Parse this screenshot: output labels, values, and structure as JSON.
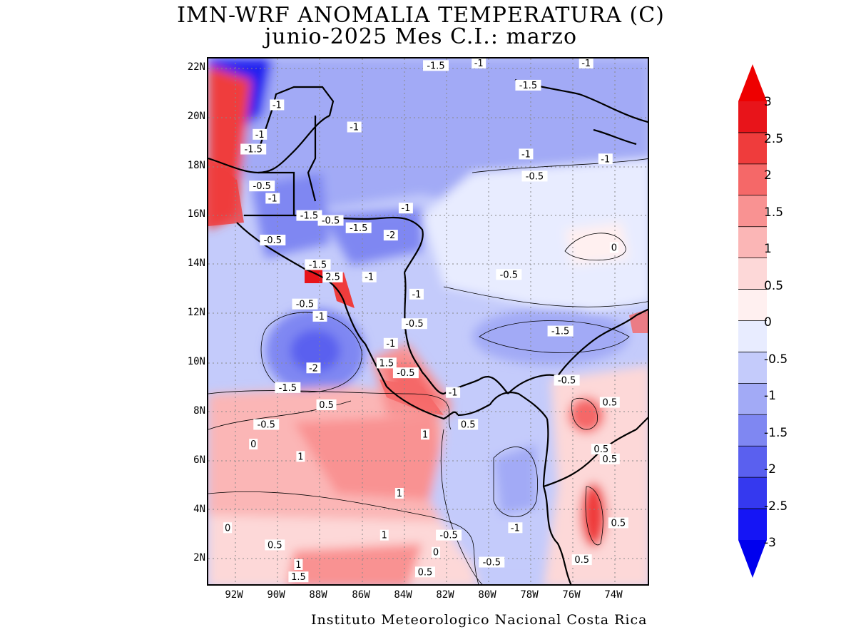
{
  "title": {
    "line1": "IMN-WRF  ANOMALIA TEMPERATURA (C)",
    "line2": "junio-2025 Mes C.I.: marzo"
  },
  "credit": "Instituto Meteorologico Nacional Costa Rica",
  "axes": {
    "lat_labels": [
      "22N",
      "20N",
      "18N",
      "16N",
      "14N",
      "12N",
      "10N",
      "8N",
      "6N",
      "4N",
      "2N"
    ],
    "lon_labels": [
      "92W",
      "90W",
      "88W",
      "86W",
      "84W",
      "82W",
      "80W",
      "78W",
      "76W",
      "74W"
    ]
  },
  "colorbar": {
    "labels": [
      "3",
      "2.5",
      "2",
      "1.5",
      "1",
      "0.5",
      "0",
      "-0.5",
      "-1",
      "-1.5",
      "-2",
      "-2.5",
      "-3"
    ],
    "colors": [
      "#e8141a",
      "#ef3c3c",
      "#f56868",
      "#f99292",
      "#fbb6b6",
      "#fdd8d8",
      "#fff0f0",
      "#e8ecff",
      "#c4cbfb",
      "#a2aaf6",
      "#7f87f2",
      "#5a60ef",
      "#3539ef",
      "#1515f5"
    ],
    "over_color": "#ee0000",
    "under_color": "#0000ee"
  },
  "contour_labels": [
    {
      "text": "-1.5",
      "lon": -82.5,
      "lat": 22.1
    },
    {
      "text": "-1",
      "lon": -80.5,
      "lat": 22.2
    },
    {
      "text": "-1",
      "lon": -75.5,
      "lat": 22.2
    },
    {
      "text": "-1.5",
      "lon": -78.2,
      "lat": 21.3
    },
    {
      "text": "-1",
      "lon": -89.9,
      "lat": 20.5
    },
    {
      "text": "-1",
      "lon": -86.3,
      "lat": 19.6
    },
    {
      "text": "-1",
      "lon": -90.7,
      "lat": 19.3
    },
    {
      "text": "-1.5",
      "lon": -91.0,
      "lat": 18.7
    },
    {
      "text": "-1",
      "lon": -78.3,
      "lat": 18.5
    },
    {
      "text": "-1",
      "lon": -74.6,
      "lat": 18.3
    },
    {
      "text": "-0.5",
      "lon": -77.9,
      "lat": 17.6
    },
    {
      "text": "-0.5",
      "lon": -90.6,
      "lat": 17.2
    },
    {
      "text": "-1",
      "lon": -90.1,
      "lat": 16.7
    },
    {
      "text": "-1",
      "lon": -83.9,
      "lat": 16.3
    },
    {
      "text": "-1.5",
      "lon": -88.4,
      "lat": 16.0
    },
    {
      "text": "-0.5",
      "lon": -87.4,
      "lat": 15.8
    },
    {
      "text": "-1.5",
      "lon": -86.1,
      "lat": 15.5
    },
    {
      "text": "-2",
      "lon": -84.6,
      "lat": 15.2
    },
    {
      "text": "-0.5",
      "lon": -90.1,
      "lat": 15.0
    },
    {
      "text": "0",
      "lon": -74.2,
      "lat": 14.7
    },
    {
      "text": "-1.5",
      "lon": -88.0,
      "lat": 14.0
    },
    {
      "text": "2.5",
      "lon": -87.3,
      "lat": 13.5
    },
    {
      "text": "-1",
      "lon": -85.6,
      "lat": 13.5
    },
    {
      "text": "-0.5",
      "lon": -79.1,
      "lat": 13.6
    },
    {
      "text": "-1",
      "lon": -83.4,
      "lat": 12.8
    },
    {
      "text": "-0.5",
      "lon": -88.6,
      "lat": 12.4
    },
    {
      "text": "-1",
      "lon": -87.9,
      "lat": 11.9
    },
    {
      "text": "-0.5",
      "lon": -83.5,
      "lat": 11.6
    },
    {
      "text": "-1.5",
      "lon": -76.7,
      "lat": 11.3
    },
    {
      "text": "-1",
      "lon": -84.6,
      "lat": 10.8
    },
    {
      "text": "-2",
      "lon": -88.2,
      "lat": 9.8
    },
    {
      "text": "1.5",
      "lon": -84.8,
      "lat": 10.0
    },
    {
      "text": "-0.5",
      "lon": -83.9,
      "lat": 9.6
    },
    {
      "text": "-0.5",
      "lon": -76.4,
      "lat": 9.3
    },
    {
      "text": "-1.5",
      "lon": -89.4,
      "lat": 9.0
    },
    {
      "text": "-1",
      "lon": -81.7,
      "lat": 8.8
    },
    {
      "text": "0.5",
      "lon": -87.6,
      "lat": 8.3
    },
    {
      "text": "0.5",
      "lon": -74.4,
      "lat": 8.4
    },
    {
      "text": "0.5",
      "lon": -81.0,
      "lat": 7.5
    },
    {
      "text": "1",
      "lon": -83.0,
      "lat": 7.1
    },
    {
      "text": "-0.5",
      "lon": -90.4,
      "lat": 7.5
    },
    {
      "text": "0",
      "lon": -91.0,
      "lat": 6.7
    },
    {
      "text": "0.5",
      "lon": -74.8,
      "lat": 6.5
    },
    {
      "text": "0.5",
      "lon": -74.4,
      "lat": 6.1
    },
    {
      "text": "1",
      "lon": -88.8,
      "lat": 6.2
    },
    {
      "text": "1",
      "lon": -84.2,
      "lat": 4.7
    },
    {
      "text": "0.5",
      "lon": -74.0,
      "lat": 3.5
    },
    {
      "text": "0",
      "lon": -92.2,
      "lat": 3.3
    },
    {
      "text": "-1",
      "lon": -78.8,
      "lat": 3.3
    },
    {
      "text": "1",
      "lon": -84.9,
      "lat": 3.0
    },
    {
      "text": "-0.5",
      "lon": -81.9,
      "lat": 3.0
    },
    {
      "text": "0.5",
      "lon": -90.0,
      "lat": 2.6
    },
    {
      "text": "0",
      "lon": -82.5,
      "lat": 2.3
    },
    {
      "text": "1",
      "lon": -88.9,
      "lat": 1.8
    },
    {
      "text": "-0.5",
      "lon": -79.9,
      "lat": 1.9
    },
    {
      "text": "0.5",
      "lon": -83.0,
      "lat": 1.5
    },
    {
      "text": "1.5",
      "lon": -88.9,
      "lat": 1.3
    },
    {
      "text": "0.5",
      "lon": -75.7,
      "lat": 2.0
    }
  ]
}
